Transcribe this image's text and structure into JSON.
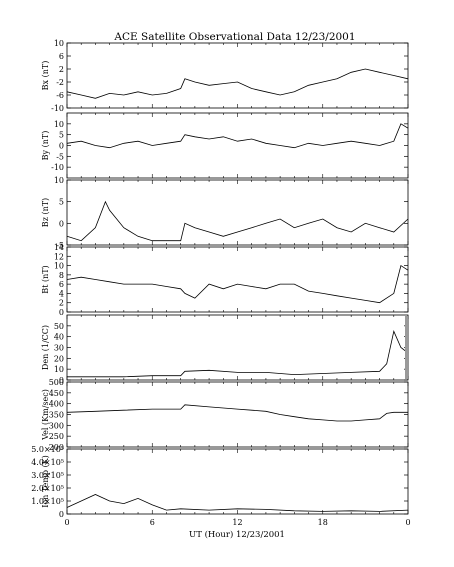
{
  "figure": {
    "title": "ACE Satellite Observational Data   12/23/2001",
    "xlabel": "UT (Hour)   12/23/2001",
    "x_ticks": [
      "0",
      "6",
      "12",
      "18",
      "0"
    ]
  },
  "chart_data": [
    {
      "type": "line",
      "ylabel": "Bx (nT)",
      "ylim": [
        -10,
        10
      ],
      "yticks": [
        "10",
        "6",
        "2",
        "-2",
        "-6",
        "-10"
      ],
      "ytick_values": [
        10,
        6,
        2,
        -2,
        -6,
        -10
      ],
      "x": [
        0,
        1,
        2,
        3,
        4,
        5,
        6,
        7,
        8,
        8.3,
        9,
        10,
        11,
        12,
        13,
        14,
        15,
        16,
        17,
        18,
        19,
        20,
        21,
        22,
        23,
        24
      ],
      "values": [
        -5,
        -6,
        -7,
        -5.5,
        -6,
        -5,
        -6,
        -5.5,
        -4,
        -1,
        -2,
        -3,
        -2.5,
        -2,
        -4,
        -5,
        -6,
        -5,
        -3,
        -2,
        -1,
        1,
        2,
        1,
        0,
        -1
      ]
    },
    {
      "type": "line",
      "ylabel": "By (nT)",
      "ylim": [
        -15,
        15
      ],
      "yticks": [
        "10",
        "5",
        "0",
        "-5",
        "-10"
      ],
      "ytick_values": [
        10,
        5,
        0,
        -5,
        -10
      ],
      "x": [
        0,
        1,
        2,
        3,
        4,
        5,
        6,
        7,
        8,
        8.3,
        9,
        10,
        11,
        12,
        13,
        14,
        15,
        16,
        17,
        18,
        19,
        20,
        21,
        22,
        23,
        23.5,
        24
      ],
      "values": [
        1,
        2,
        0,
        -1,
        1,
        2,
        0,
        1,
        2,
        5,
        4,
        3,
        4,
        2,
        3,
        1,
        0,
        -1,
        1,
        0,
        1,
        2,
        1,
        0,
        2,
        10,
        8
      ]
    },
    {
      "type": "line",
      "ylabel": "Bz (nT)",
      "ylim": [
        -5,
        10
      ],
      "yticks": [
        "10",
        "5",
        "0",
        "-5"
      ],
      "ytick_values": [
        10,
        5,
        0,
        -5
      ],
      "x": [
        0,
        1,
        2,
        2.7,
        3,
        4,
        5,
        6,
        7,
        8,
        8.3,
        9,
        10,
        11,
        12,
        13,
        14,
        15,
        16,
        17,
        18,
        19,
        20,
        21,
        22,
        23,
        24
      ],
      "values": [
        -3,
        -4,
        -1,
        5,
        3,
        -1,
        -3,
        -4,
        -4,
        -4,
        0,
        -1,
        -2,
        -3,
        -2,
        -1,
        0,
        1,
        -1,
        0,
        1,
        -1,
        -2,
        0,
        -1,
        -2,
        1
      ]
    },
    {
      "type": "line",
      "ylabel": "Bt (nT)",
      "ylim": [
        0,
        14
      ],
      "yticks": [
        "14",
        "12",
        "10",
        "8",
        "6",
        "4",
        "2",
        "0"
      ],
      "ytick_values": [
        14,
        12,
        10,
        8,
        6,
        4,
        2,
        0
      ],
      "x": [
        0,
        1,
        2,
        3,
        4,
        5,
        6,
        7,
        8,
        8.3,
        9,
        10,
        11,
        12,
        13,
        14,
        15,
        16,
        17,
        18,
        19,
        20,
        21,
        22,
        23,
        23.5,
        24
      ],
      "values": [
        7,
        7.5,
        7,
        6.5,
        6,
        6,
        6,
        5.5,
        5,
        4,
        3,
        6,
        5,
        6,
        5.5,
        5,
        6,
        6,
        4.5,
        4,
        3.5,
        3,
        2.5,
        2,
        4,
        10,
        9
      ]
    },
    {
      "type": "line",
      "ylabel": "Den (1/CC)",
      "ylim": [
        0,
        60
      ],
      "yticks": [
        "50",
        "40",
        "30",
        "20",
        "10",
        "0"
      ],
      "ytick_values": [
        50,
        40,
        30,
        20,
        10,
        0
      ],
      "x": [
        0,
        2,
        4,
        6,
        8,
        8.3,
        10,
        12,
        14,
        16,
        18,
        20,
        22,
        22.5,
        23,
        23.5,
        24
      ],
      "values": [
        3,
        3,
        3,
        4,
        4,
        8,
        9,
        7,
        7,
        5,
        6,
        7,
        8,
        15,
        45,
        30,
        25
      ]
    },
    {
      "type": "line",
      "ylabel": "Vel (Km/sec)",
      "ylim": [
        200,
        500
      ],
      "yticks": [
        "500",
        "450",
        "400",
        "350",
        "300",
        "250",
        "200"
      ],
      "ytick_values": [
        500,
        450,
        400,
        350,
        300,
        250,
        200
      ],
      "x": [
        0,
        2,
        4,
        6,
        8,
        8.3,
        10,
        12,
        13,
        14,
        15,
        16,
        17,
        18,
        19,
        20,
        21,
        22,
        22.5,
        23,
        24
      ],
      "values": [
        360,
        365,
        370,
        375,
        375,
        395,
        385,
        375,
        370,
        365,
        350,
        340,
        330,
        325,
        320,
        320,
        325,
        330,
        355,
        360,
        360
      ]
    },
    {
      "type": "line",
      "ylabel": "Ion Temp (K)",
      "ylim": [
        0,
        500000
      ],
      "yticks": [
        "5.0×10⁵",
        "4.0×10⁵",
        "3.0×10⁵",
        "2.0×10⁵",
        "1.0×10⁵",
        "0"
      ],
      "ytick_values": [
        500000,
        400000,
        300000,
        200000,
        100000,
        0
      ],
      "x": [
        0,
        1,
        2,
        3,
        4,
        5,
        6,
        7,
        8,
        10,
        12,
        14,
        16,
        18,
        20,
        22,
        24
      ],
      "values": [
        50000,
        100000,
        150000,
        100000,
        80000,
        120000,
        70000,
        30000,
        40000,
        30000,
        40000,
        35000,
        25000,
        20000,
        25000,
        20000,
        30000
      ]
    }
  ]
}
